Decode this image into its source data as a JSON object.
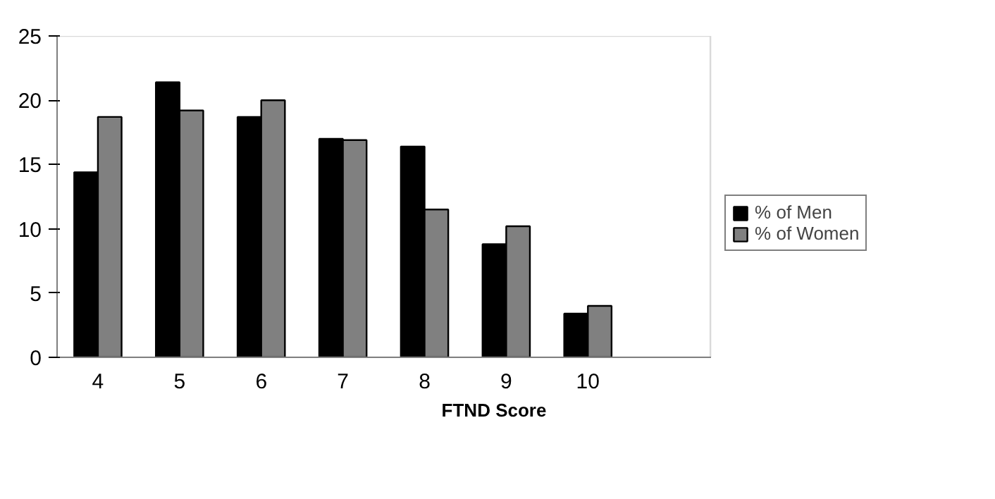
{
  "chart_data": {
    "type": "bar",
    "xlabel": "FTND Score",
    "categories": [
      "4",
      "5",
      "6",
      "7",
      "8",
      "9",
      "10",
      null
    ],
    "series": [
      {
        "name": "% of Men",
        "color": "#000000",
        "values": [
          14.4,
          21.4,
          18.7,
          17.0,
          16.4,
          8.8,
          3.4,
          null
        ]
      },
      {
        "name": "% of Women",
        "color": "#808080",
        "values": [
          18.7,
          19.2,
          20.0,
          16.9,
          11.5,
          10.2,
          4.0,
          null
        ]
      }
    ],
    "ylim": [
      0,
      25
    ],
    "yticks": [
      0,
      5,
      10,
      15,
      20,
      25
    ],
    "grid": false,
    "legend": "right"
  }
}
